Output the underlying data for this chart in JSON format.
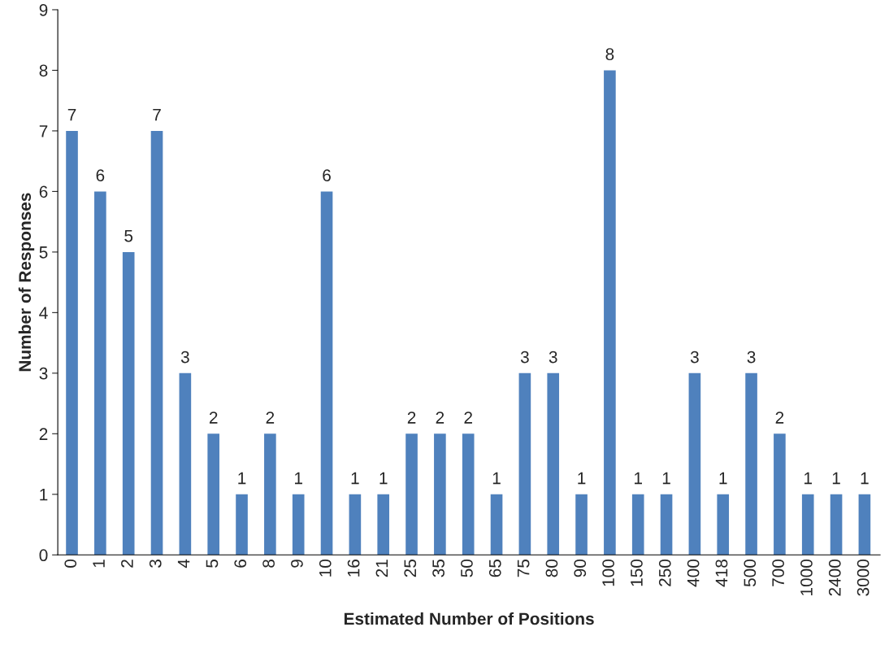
{
  "chart_data": {
    "type": "bar",
    "xlabel": "Estimated Number of Positions",
    "ylabel": "Number of Responses",
    "categories": [
      "0",
      "1",
      "2",
      "3",
      "4",
      "5",
      "6",
      "8",
      "9",
      "10",
      "16",
      "21",
      "25",
      "35",
      "50",
      "65",
      "75",
      "80",
      "90",
      "100",
      "150",
      "250",
      "400",
      "418",
      "500",
      "700",
      "1000",
      "2400",
      "3000"
    ],
    "values": [
      7,
      6,
      5,
      7,
      3,
      2,
      1,
      2,
      1,
      6,
      1,
      1,
      2,
      2,
      2,
      1,
      3,
      3,
      1,
      8,
      1,
      1,
      3,
      1,
      3,
      2,
      1,
      1,
      1
    ],
    "color": "#4f81bd",
    "ylim": [
      0,
      9
    ],
    "yticks": [
      0,
      1,
      2,
      3,
      4,
      5,
      6,
      7,
      8,
      9
    ],
    "grid": false,
    "data_labels": true
  }
}
